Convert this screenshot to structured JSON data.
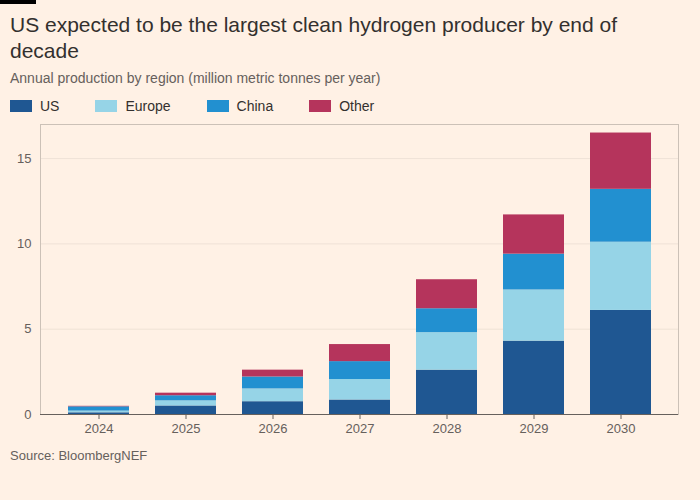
{
  "chart_data": {
    "type": "bar",
    "stacked": true,
    "title": "US expected to be the largest clean hydrogen producer by end of decade",
    "subtitle": "Annual production by region (million metric tonnes per year)",
    "caption": "Source: BloombergNEF",
    "categories": [
      "2024",
      "2025",
      "2026",
      "2027",
      "2028",
      "2029",
      "2030"
    ],
    "series": [
      {
        "name": "US",
        "color": "#1f5792",
        "values": [
          0.1,
          0.5,
          0.75,
          0.85,
          2.6,
          4.3,
          6.1
        ]
      },
      {
        "name": "Europe",
        "color": "#96d4e7",
        "values": [
          0.1,
          0.3,
          0.75,
          1.2,
          2.2,
          3.0,
          4.0
        ]
      },
      {
        "name": "China",
        "color": "#2290d0",
        "values": [
          0.25,
          0.3,
          0.7,
          1.05,
          1.4,
          2.1,
          3.1
        ]
      },
      {
        "name": "Other",
        "color": "#b5345c",
        "values": [
          0.03,
          0.15,
          0.4,
          1.0,
          1.7,
          2.3,
          3.3
        ]
      }
    ],
    "ylim": [
      0,
      17
    ],
    "yticks": [
      0,
      5,
      10,
      15
    ],
    "grid": true,
    "legend": "top-left"
  }
}
